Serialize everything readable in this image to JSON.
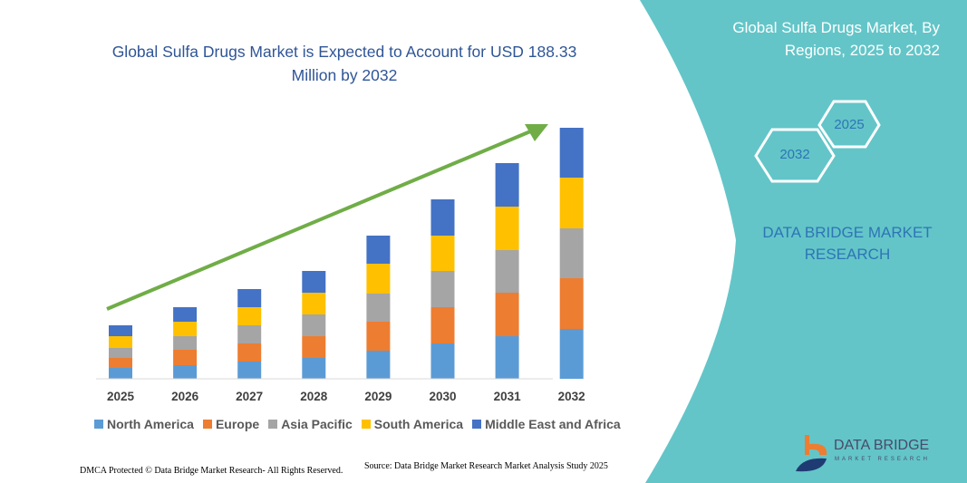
{
  "title": "Global Sulfa Drugs Market is Expected to Account for USD 188.33 Million by 2032",
  "side_panel": {
    "title": "Global Sulfa Drugs Market, By Regions, 2025 to 2032",
    "hex_start": "2025",
    "hex_end": "2032",
    "brand": "DATA BRIDGE MARKET RESEARCH",
    "logo_text": "DATA BRIDGE",
    "logo_subtext": "MARKET RESEARCH",
    "color": "#63c5c8"
  },
  "footer": {
    "dmca": "DMCA Protected © Data Bridge Market Research-  All Rights Reserved.",
    "source": "Source: Data Bridge Market Research  Market Analysis Study 2025"
  },
  "chart_data": {
    "type": "bar",
    "stacked": true,
    "title": "Global Sulfa Drugs Market is Expected to Account for USD 188.33 Million by 2032",
    "categories": [
      "2025",
      "2026",
      "2027",
      "2028",
      "2029",
      "2030",
      "2031",
      "2032"
    ],
    "series": [
      {
        "name": "North America",
        "color": "#5b9bd5",
        "values": [
          12,
          15,
          19,
          23,
          31,
          39,
          47,
          55
        ]
      },
      {
        "name": "Europe",
        "color": "#ed7d31",
        "values": [
          11,
          17,
          20,
          24,
          32,
          40,
          48,
          56
        ]
      },
      {
        "name": "Asia Pacific",
        "color": "#a5a5a5",
        "values": [
          11,
          15,
          20,
          24,
          31,
          40,
          47,
          55
        ]
      },
      {
        "name": "South America",
        "color": "#ffc000",
        "values": [
          13,
          16,
          20,
          24,
          33,
          39,
          48,
          56
        ]
      },
      {
        "name": "Middle East and Africa",
        "color": "#4472c4",
        "values": [
          12,
          16,
          20,
          24,
          31,
          40,
          48,
          55
        ]
      }
    ],
    "ylim": [
      0,
      280
    ],
    "grid": false,
    "legend": "bottom",
    "trend_arrow_color": "#70ad47"
  }
}
